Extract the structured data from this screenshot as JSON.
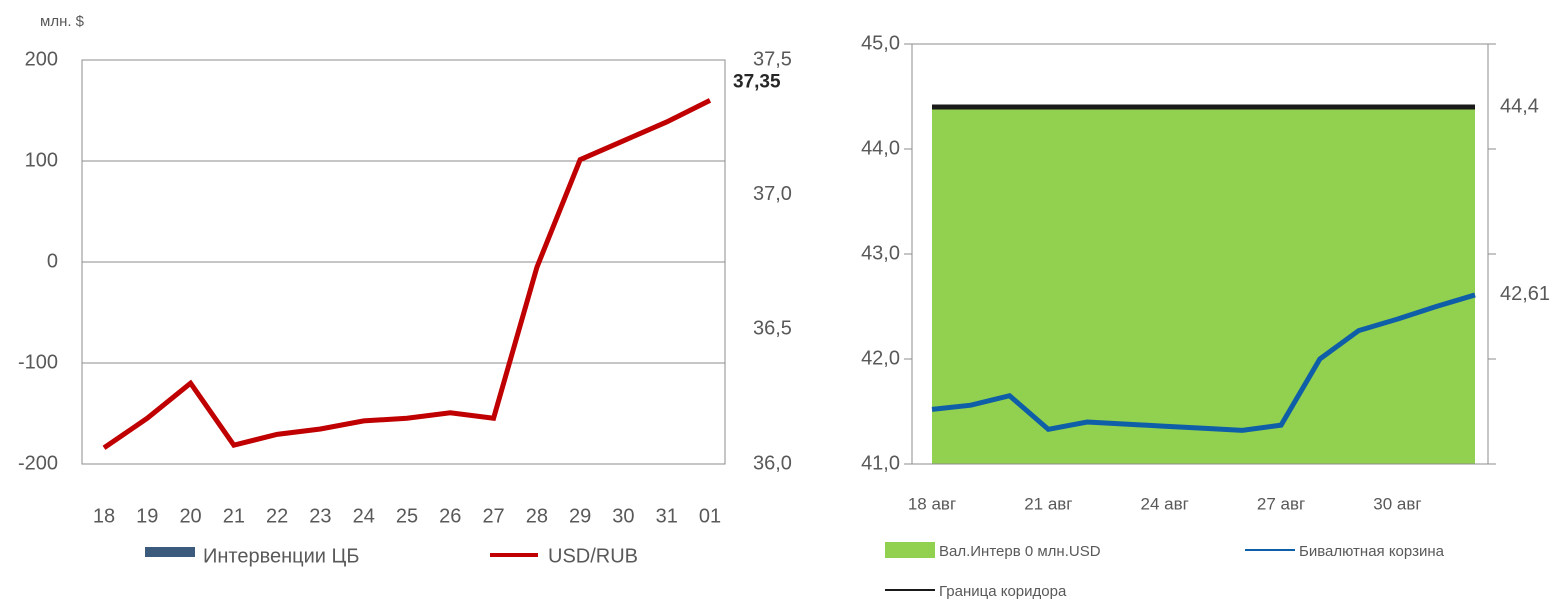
{
  "chart_data": [
    {
      "type": "combo",
      "y_label": "млн. $",
      "categories": [
        "18",
        "19",
        "20",
        "21",
        "22",
        "23",
        "24",
        "25",
        "26",
        "27",
        "28",
        "29",
        "30",
        "31",
        "01"
      ],
      "ylim": [
        -200,
        200
      ],
      "yticks": [
        -200,
        -100,
        0,
        100,
        200
      ],
      "y2lim": [
        36.0,
        37.5
      ],
      "y2ticks": [
        {
          "value": 36.0,
          "label": "36,0"
        },
        {
          "value": 36.5,
          "label": "36,5"
        },
        {
          "value": 37.0,
          "label": "37,0"
        },
        {
          "value": 37.5,
          "label": "37,5"
        }
      ],
      "grid": true,
      "series": [
        {
          "name": "Интервенции ЦБ",
          "type": "bar",
          "color": "#3c5a7c",
          "values": [
            0,
            0,
            0,
            0,
            0,
            0,
            0,
            0,
            0,
            0,
            0,
            0,
            0,
            0,
            0
          ]
        },
        {
          "name": "USD/RUB",
          "type": "line",
          "axis": "y2",
          "color": "#c00000",
          "values": [
            36.06,
            36.17,
            36.3,
            36.07,
            36.11,
            36.13,
            36.16,
            36.17,
            36.19,
            36.17,
            36.73,
            37.13,
            37.2,
            37.27,
            37.35
          ],
          "value_labels": [
            null,
            null,
            null,
            null,
            null,
            null,
            null,
            null,
            null,
            null,
            null,
            null,
            null,
            null,
            "37,35"
          ]
        }
      ]
    },
    {
      "type": "combo",
      "categories": [
        "18 авг",
        null,
        null,
        "21 авг",
        null,
        null,
        "24 авг",
        null,
        null,
        "27 авг",
        null,
        null,
        "30 авг",
        null,
        null
      ],
      "ylim": [
        41,
        45
      ],
      "yticks": [
        {
          "value": 41,
          "label": "41,0"
        },
        {
          "value": 42,
          "label": "42,0"
        },
        {
          "value": 43,
          "label": "43,0"
        },
        {
          "value": 44,
          "label": "44,0"
        },
        {
          "value": 45,
          "label": "45,0"
        }
      ],
      "grid": false,
      "series": [
        {
          "name": "Вал.Интерв 0 млн.USD",
          "type": "area",
          "color": "#92d050",
          "values": [
            44.4,
            44.4,
            44.4,
            44.4,
            44.4,
            44.4,
            44.4,
            44.4,
            44.4,
            44.4,
            44.4,
            44.4,
            44.4,
            44.4,
            44.4
          ]
        },
        {
          "name": "Бивалютная корзина",
          "type": "line",
          "color": "#0f5ea8",
          "values": [
            41.52,
            41.56,
            41.65,
            41.33,
            41.4,
            41.38,
            41.36,
            41.34,
            41.32,
            41.37,
            42.0,
            42.27,
            42.38,
            42.5,
            42.61
          ],
          "value_labels": [
            null,
            null,
            null,
            null,
            null,
            null,
            null,
            null,
            null,
            null,
            null,
            null,
            null,
            null,
            "42,61"
          ]
        },
        {
          "name": "Граница коридора",
          "type": "line",
          "color": "#1a1a1a",
          "values": [
            44.4,
            44.4,
            44.4,
            44.4,
            44.4,
            44.4,
            44.4,
            44.4,
            44.4,
            44.4,
            44.4,
            44.4,
            44.4,
            44.4,
            44.4
          ],
          "value_labels": [
            null,
            null,
            null,
            null,
            null,
            null,
            null,
            null,
            null,
            null,
            null,
            null,
            null,
            null,
            "44,4"
          ]
        }
      ]
    }
  ]
}
